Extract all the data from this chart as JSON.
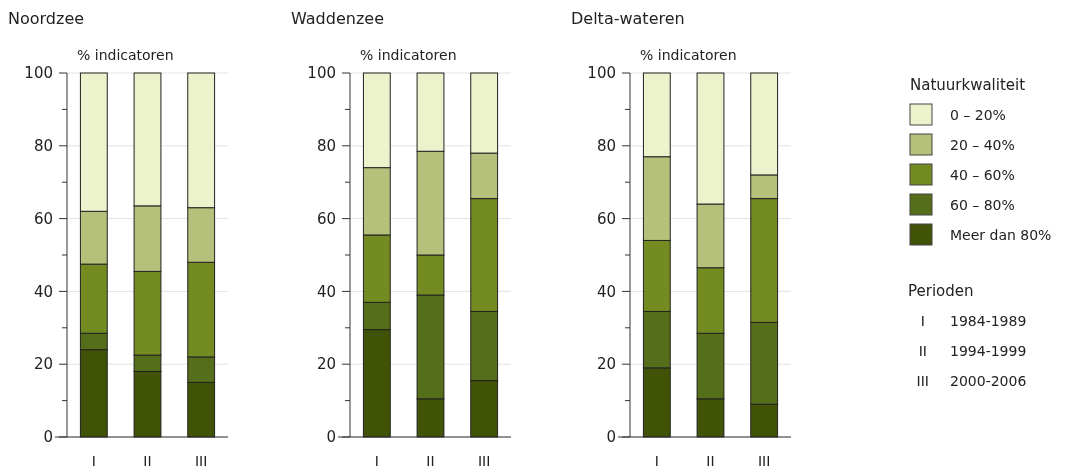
{
  "chart_data": [
    {
      "type": "bar",
      "title": "Noordzee",
      "ylabel": "% indicatoren",
      "categories": [
        "I",
        "II",
        "III"
      ],
      "stacked": true,
      "ylim": [
        0,
        100
      ],
      "yticks": [
        0,
        {
          "value": 10,
          "label": null
        },
        20,
        {
          "value": 30,
          "label": null
        },
        40,
        {
          "value": 50,
          "label": null
        },
        60,
        {
          "value": 70,
          "label": null
        },
        80,
        {
          "value": 90,
          "label": null
        },
        100
      ],
      "grid": "y",
      "legend": false,
      "series": [
        {
          "color": "#415306",
          "values": [
            24,
            18,
            15
          ]
        },
        {
          "color": "#546e19",
          "values": [
            4.5,
            4.5,
            7
          ]
        },
        {
          "color": "#748b22",
          "values": [
            19,
            23,
            26
          ]
        },
        {
          "color": "#b5c17a",
          "values": [
            14.5,
            18,
            15
          ]
        },
        {
          "color": "#ecf2cc",
          "values": [
            38,
            36.5,
            37
          ]
        }
      ]
    },
    {
      "type": "bar",
      "title": "Waddenzee",
      "ylabel": "% indicatoren",
      "categories": [
        "I",
        "II",
        "III"
      ],
      "stacked": true,
      "ylim": [
        0,
        100
      ],
      "yticks": [
        0,
        {
          "value": 10,
          "label": null
        },
        20,
        {
          "value": 30,
          "label": null
        },
        40,
        {
          "value": 50,
          "label": null
        },
        60,
        {
          "value": 70,
          "label": null
        },
        80,
        {
          "value": 90,
          "label": null
        },
        100
      ],
      "grid": "y",
      "legend": false,
      "series": [
        {
          "color": "#415306",
          "values": [
            29.5,
            10.5,
            15.5
          ]
        },
        {
          "color": "#546e19",
          "values": [
            7.5,
            28.5,
            19
          ]
        },
        {
          "color": "#748b22",
          "values": [
            18.5,
            11,
            31
          ]
        },
        {
          "color": "#b5c17a",
          "values": [
            18.5,
            28.5,
            12.5
          ]
        },
        {
          "color": "#ecf2cc",
          "values": [
            26,
            21.5,
            22
          ]
        }
      ]
    },
    {
      "type": "bar",
      "title": "Delta-wateren",
      "ylabel": "% indicatoren",
      "categories": [
        "I",
        "II",
        "III"
      ],
      "stacked": true,
      "ylim": [
        0,
        100
      ],
      "yticks": [
        0,
        {
          "value": 10,
          "label": null
        },
        20,
        {
          "value": 30,
          "label": null
        },
        40,
        {
          "value": 50,
          "label": null
        },
        60,
        {
          "value": 70,
          "label": null
        },
        80,
        {
          "value": 90,
          "label": null
        },
        100
      ],
      "grid": "y",
      "legend": "right",
      "legend_title": "Natuurkwaliteit",
      "annotations": [
        "Perioden",
        "I 1984-1989",
        "II 1994-1999",
        "III 2000-2006"
      ],
      "series": [
        {
          "name": "Meer dan 80%",
          "color": "#415306",
          "values": [
            19,
            10.5,
            9
          ]
        },
        {
          "name": "60 – 80%",
          "color": "#546e19",
          "values": [
            15.5,
            18,
            22.5
          ]
        },
        {
          "name": "40 – 60%",
          "color": "#748b22",
          "values": [
            19.5,
            18,
            34
          ]
        },
        {
          "name": "20 – 40%",
          "color": "#b5c17a",
          "values": [
            23,
            17.5,
            6.5
          ]
        },
        {
          "name": "0 – 20%",
          "color": "#ecf2cc",
          "values": [
            23,
            36,
            28
          ]
        }
      ]
    }
  ]
}
